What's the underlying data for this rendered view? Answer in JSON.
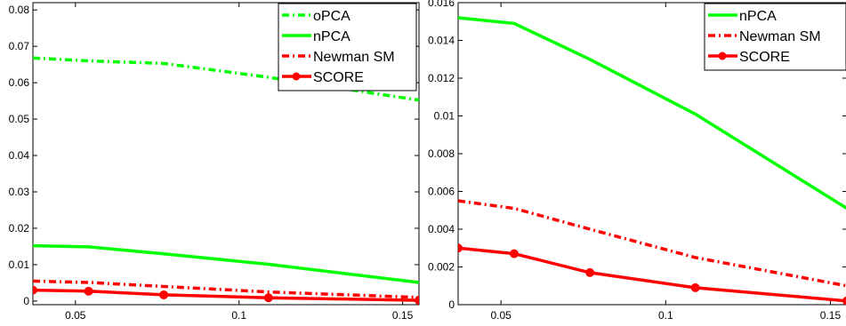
{
  "chart_data": [
    {
      "type": "line",
      "xlim": [
        0.037,
        0.155
      ],
      "ylim": [
        -0.001,
        0.082
      ],
      "x_ticks": [
        0.05,
        0.1,
        0.15
      ],
      "x_tick_labels": [
        "0.05",
        "0.1",
        "0.15"
      ],
      "y_ticks": [
        0,
        0.01,
        0.02,
        0.03,
        0.04,
        0.05,
        0.06,
        0.07,
        0.08
      ],
      "y_tick_labels": [
        "0",
        "0.01",
        "0.02",
        "0.03",
        "0.04",
        "0.05",
        "0.06",
        "0.07",
        "0.08"
      ],
      "grid": false,
      "legend_position": "top-right",
      "series": [
        {
          "name": "oPCA",
          "color": "#00ff00",
          "style": "dash-dot",
          "marker": "none",
          "x": [
            0.037,
            0.054,
            0.077,
            0.109,
            0.155
          ],
          "values": [
            0.0668,
            0.066,
            0.0653,
            0.0615,
            0.0552
          ]
        },
        {
          "name": "nPCA",
          "color": "#00ff00",
          "style": "solid",
          "marker": "none",
          "x": [
            0.037,
            0.054,
            0.077,
            0.109,
            0.155
          ],
          "values": [
            0.0152,
            0.0149,
            0.013,
            0.0101,
            0.0051
          ]
        },
        {
          "name": "Newman SM",
          "color": "#ff0000",
          "style": "dash-dot",
          "marker": "none",
          "x": [
            0.037,
            0.054,
            0.077,
            0.109,
            0.155
          ],
          "values": [
            0.0055,
            0.0051,
            0.004,
            0.0025,
            0.001
          ]
        },
        {
          "name": "SCORE",
          "color": "#ff0000",
          "style": "solid",
          "marker": "circle",
          "x": [
            0.037,
            0.054,
            0.077,
            0.109,
            0.155
          ],
          "values": [
            0.003,
            0.0027,
            0.0017,
            0.0009,
            0.0002
          ]
        }
      ]
    },
    {
      "type": "line",
      "xlim": [
        0.037,
        0.155
      ],
      "ylim": [
        0,
        0.016
      ],
      "x_ticks": [
        0.05,
        0.1,
        0.15
      ],
      "x_tick_labels": [
        "0.05",
        "0.1",
        "0.15"
      ],
      "y_ticks": [
        0,
        0.002,
        0.004,
        0.006,
        0.008,
        0.01,
        0.012,
        0.014,
        0.016
      ],
      "y_tick_labels": [
        "0",
        "0.002",
        "0.004",
        "0.006",
        "0.008",
        "0.01",
        "0.012",
        "0.014",
        "0.016"
      ],
      "grid": false,
      "legend_position": "top-right",
      "series": [
        {
          "name": "nPCA",
          "color": "#00ff00",
          "style": "solid",
          "marker": "none",
          "x": [
            0.037,
            0.054,
            0.077,
            0.109,
            0.155
          ],
          "values": [
            0.0152,
            0.0149,
            0.013,
            0.0101,
            0.0051
          ]
        },
        {
          "name": "Newman SM",
          "color": "#ff0000",
          "style": "dash-dot",
          "marker": "none",
          "x": [
            0.037,
            0.054,
            0.077,
            0.109,
            0.155
          ],
          "values": [
            0.0055,
            0.0051,
            0.004,
            0.0025,
            0.001
          ]
        },
        {
          "name": "SCORE",
          "color": "#ff0000",
          "style": "solid",
          "marker": "circle",
          "x": [
            0.037,
            0.054,
            0.077,
            0.109,
            0.155
          ],
          "values": [
            0.003,
            0.0027,
            0.0017,
            0.0009,
            0.0002
          ]
        }
      ]
    }
  ]
}
